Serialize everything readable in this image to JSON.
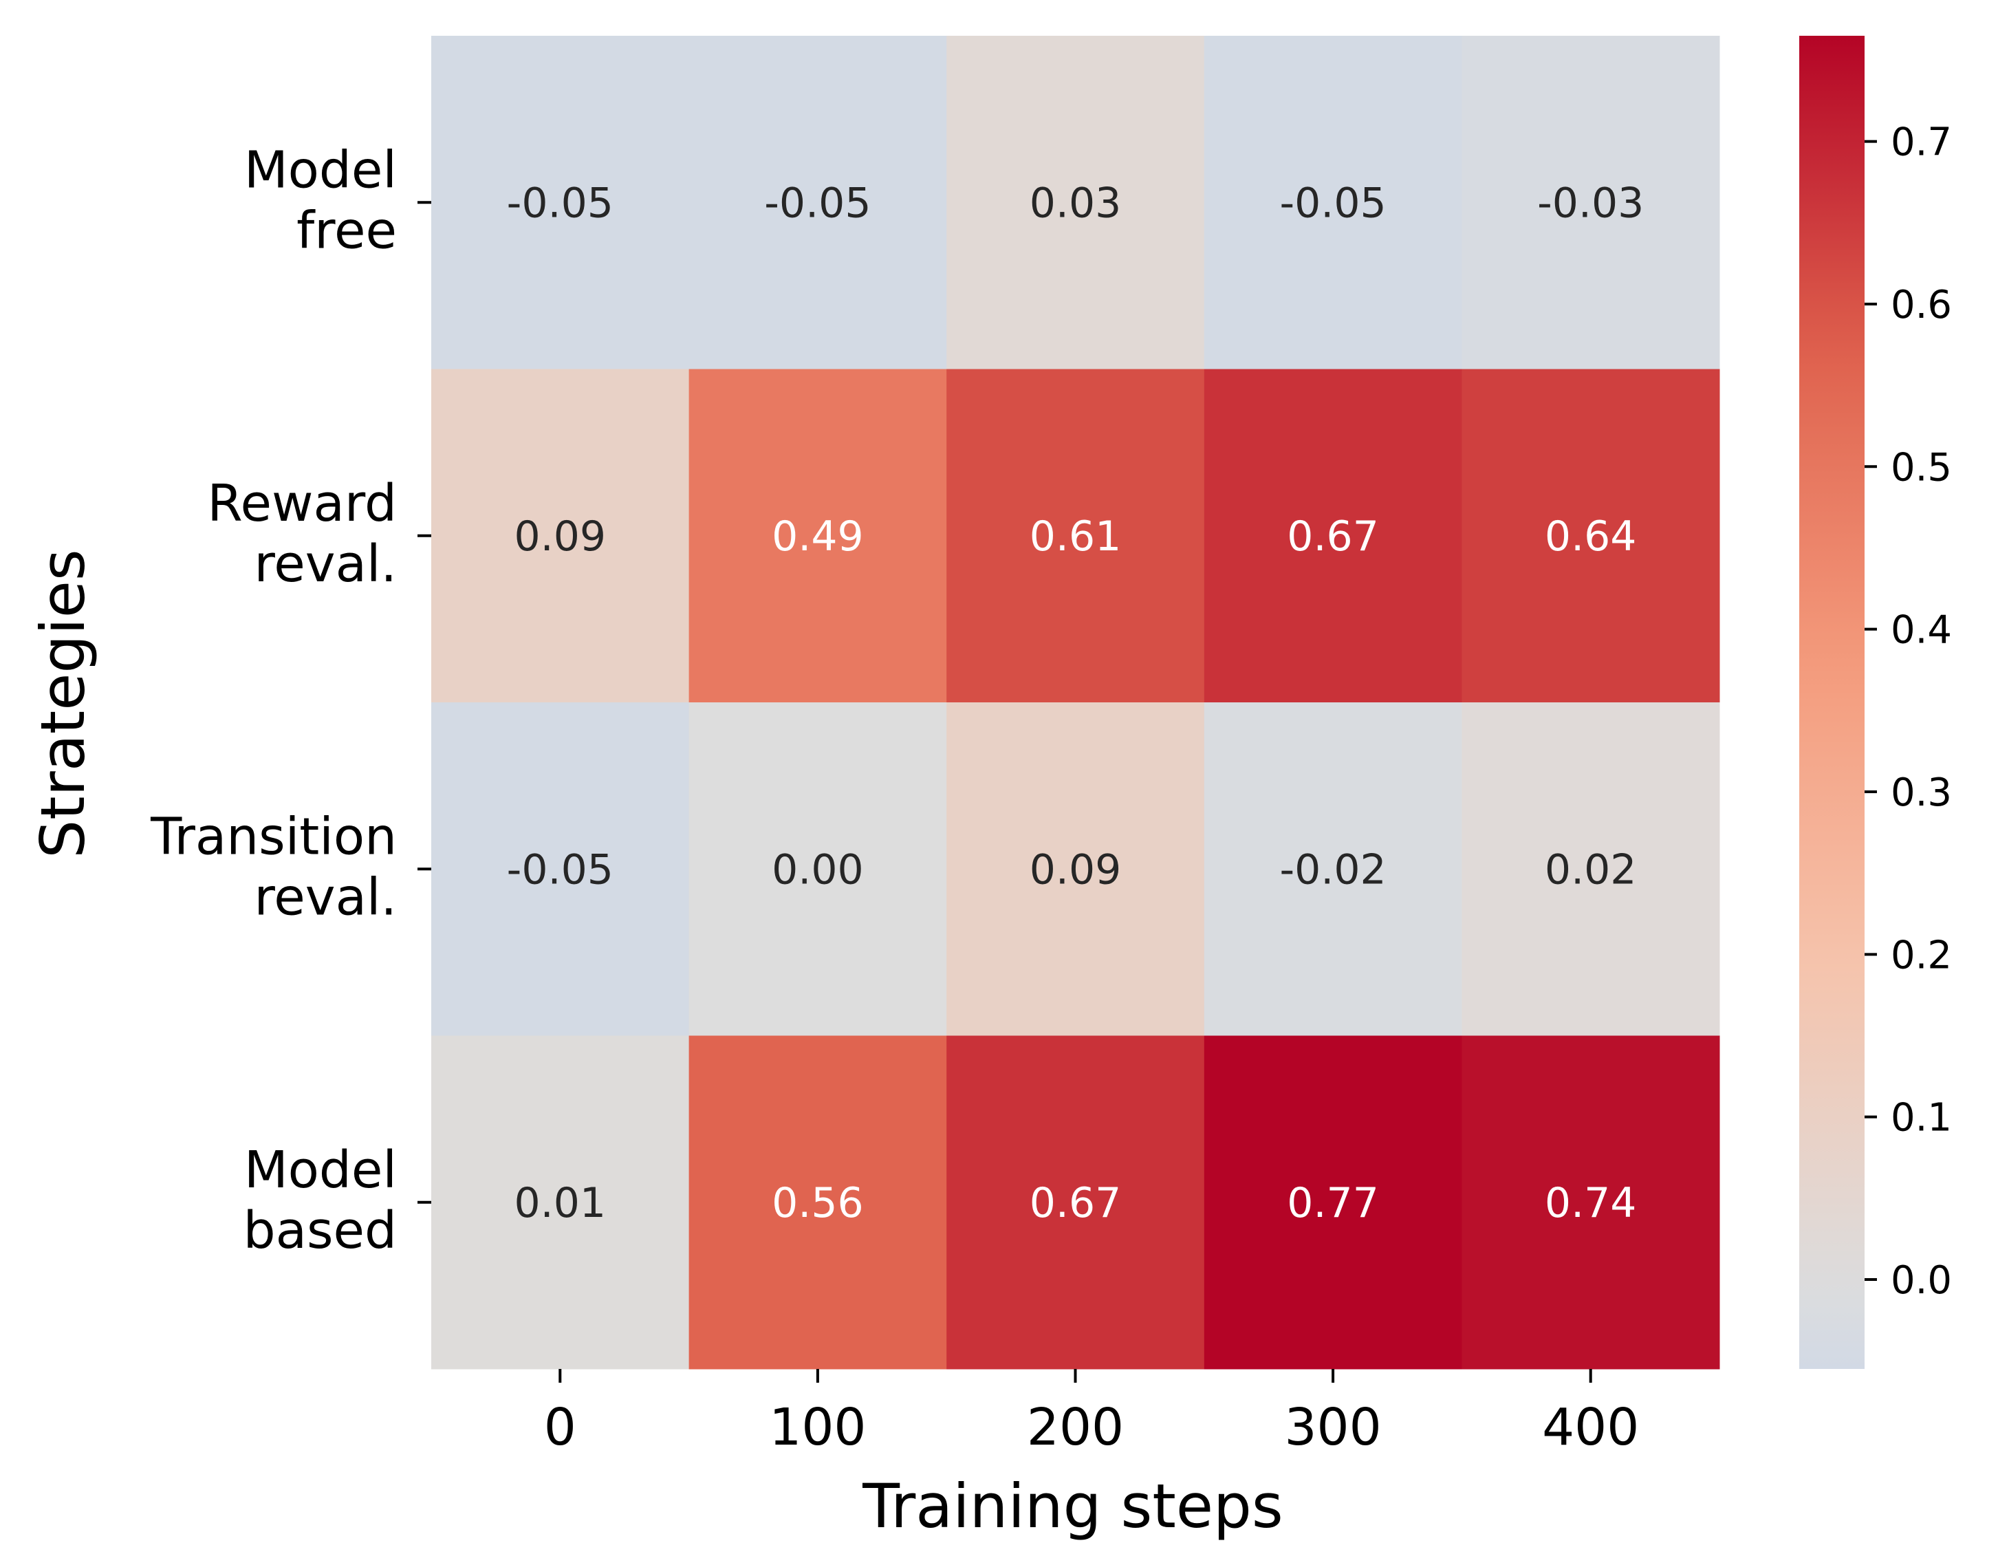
{
  "chart_data": {
    "type": "heatmap",
    "title": "",
    "xlabel": "Training steps",
    "ylabel": "Strategies",
    "x_categories": [
      "0",
      "100",
      "200",
      "300",
      "400"
    ],
    "y_categories": [
      [
        "Model",
        "free"
      ],
      [
        "Reward",
        "reval."
      ],
      [
        "Transition",
        "reval."
      ],
      [
        "Model",
        "based"
      ]
    ],
    "values": [
      [
        -0.05,
        -0.05,
        0.03,
        -0.05,
        -0.03
      ],
      [
        0.09,
        0.49,
        0.61,
        0.67,
        0.64
      ],
      [
        -0.05,
        0.0,
        0.09,
        -0.02,
        0.02
      ],
      [
        0.01,
        0.56,
        0.67,
        0.77,
        0.74
      ]
    ],
    "value_labels": [
      [
        "-0.05",
        "-0.05",
        "0.03",
        "-0.05",
        "-0.03"
      ],
      [
        "0.09",
        "0.49",
        "0.61",
        "0.67",
        "0.64"
      ],
      [
        "-0.05",
        "0.00",
        "0.09",
        "-0.02",
        "0.02"
      ],
      [
        "0.01",
        "0.56",
        "0.67",
        "0.77",
        "0.74"
      ]
    ],
    "colormap": "coolwarm",
    "center": 0,
    "colorbar": {
      "vmin": -0.055,
      "vmax": 0.765,
      "ticks": [
        0.0,
        0.1,
        0.2,
        0.3,
        0.4,
        0.5,
        0.6,
        0.7
      ],
      "tick_labels": [
        "0.0",
        "0.1",
        "0.2",
        "0.3",
        "0.4",
        "0.5",
        "0.6",
        "0.7"
      ]
    },
    "grid": false
  }
}
